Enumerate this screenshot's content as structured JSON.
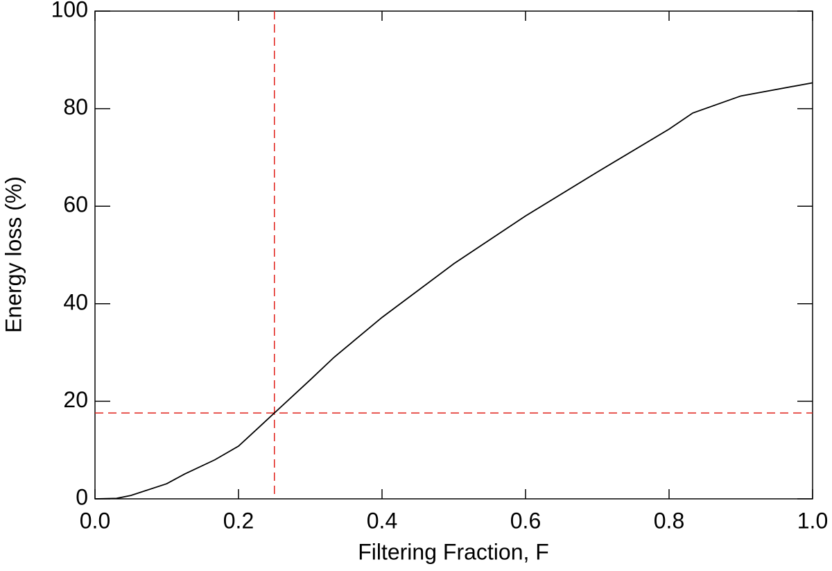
{
  "chart_data": {
    "type": "line",
    "xlabel": "Filtering Fraction, F",
    "ylabel": "Energy loss (%)",
    "x": [
      0,
      0.03,
      0.05,
      0.1,
      0.125,
      0.167,
      0.2,
      0.25,
      0.3,
      0.333,
      0.4,
      0.5,
      0.6,
      0.7,
      0.8,
      0.833,
      0.9,
      1.0
    ],
    "series": [
      {
        "color": "#000000",
        "values": [
          0,
          0.1,
          0.7,
          3.1,
          5.1,
          8.0,
          10.8,
          17.6,
          24.4,
          29.0,
          37.2,
          48.2,
          58.0,
          67.0,
          75.8,
          79.1,
          82.6,
          85.3
        ]
      }
    ],
    "xlim": [
      0,
      1.0
    ],
    "ylim": [
      0,
      100
    ],
    "xticks": [
      {
        "value": 0,
        "label": "0.0"
      },
      0.2,
      0.4,
      0.6,
      0.8,
      {
        "value": 1.0,
        "label": "1.0"
      }
    ],
    "yticks": [
      0,
      20,
      40,
      60,
      80,
      100
    ],
    "reference_lines": {
      "color": "#e0201a",
      "x": 0.25,
      "y": 17.6
    }
  }
}
